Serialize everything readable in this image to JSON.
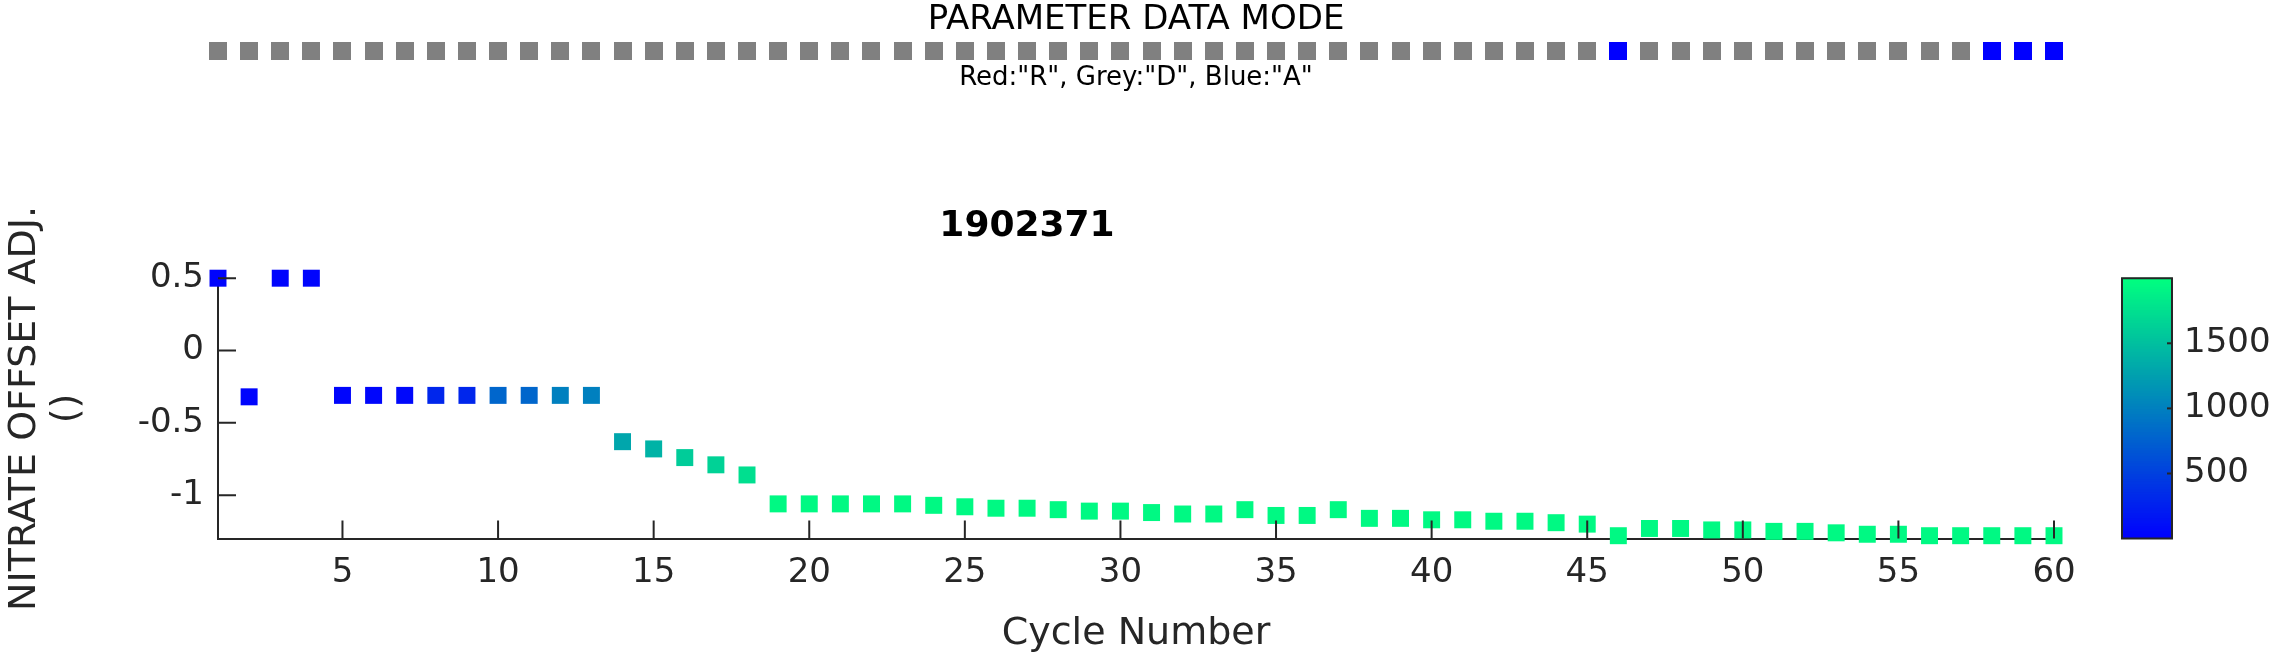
{
  "chart_data": [
    {
      "type": "other",
      "title": "PARAMETER DATA MODE",
      "annotations": [
        "Red:\"R\", Grey:\"D\", Blue:\"A\""
      ],
      "categories": [
        null,
        null,
        null,
        null,
        null,
        null,
        null,
        null,
        null,
        null,
        null,
        null,
        null,
        null,
        null,
        null,
        null,
        null,
        null,
        null,
        null,
        null,
        null,
        null,
        null,
        null,
        null,
        null,
        null,
        null,
        null,
        null,
        null,
        null,
        null,
        null,
        null,
        null,
        null,
        null,
        null,
        null,
        null,
        null,
        null,
        null,
        null,
        null,
        null,
        null,
        null,
        null,
        null,
        null,
        null,
        null,
        null,
        null,
        null,
        null
      ],
      "colors": [
        "#808080",
        "#808080",
        "#808080",
        "#808080",
        "#808080",
        "#808080",
        "#808080",
        "#808080",
        "#808080",
        "#808080",
        "#808080",
        "#808080",
        "#808080",
        "#808080",
        "#808080",
        "#808080",
        "#808080",
        "#808080",
        "#808080",
        "#808080",
        "#808080",
        "#808080",
        "#808080",
        "#808080",
        "#808080",
        "#808080",
        "#808080",
        "#808080",
        "#808080",
        "#808080",
        "#808080",
        "#808080",
        "#808080",
        "#808080",
        "#808080",
        "#808080",
        "#808080",
        "#808080",
        "#808080",
        "#808080",
        "#808080",
        "#808080",
        "#808080",
        "#808080",
        "#808080",
        "#0000ff",
        "#808080",
        "#808080",
        "#808080",
        "#808080",
        "#808080",
        "#808080",
        "#808080",
        "#808080",
        "#808080",
        "#808080",
        "#808080",
        "#0000ff",
        "#0000ff",
        "#0000ff"
      ]
    },
    {
      "type": "scatter",
      "title": "1902371",
      "xlabel": "Cycle Number",
      "ylabel": "NITRATE OFFSET ADJ.\n()",
      "x": [
        1,
        2,
        3,
        4,
        5,
        6,
        7,
        8,
        9,
        10,
        11,
        12,
        13,
        14,
        15,
        16,
        17,
        18,
        19,
        20,
        21,
        22,
        23,
        24,
        25,
        26,
        27,
        28,
        29,
        30,
        31,
        32,
        33,
        34,
        35,
        36,
        37,
        38,
        39,
        40,
        41,
        42,
        43,
        44,
        45,
        46,
        47,
        48,
        49,
        50,
        51,
        52,
        53,
        54,
        55,
        56,
        57,
        58,
        59,
        60
      ],
      "values": [
        0.5,
        -0.32,
        0.5,
        0.5,
        -0.31,
        -0.31,
        -0.31,
        -0.31,
        -0.31,
        -0.31,
        -0.31,
        -0.31,
        -0.31,
        -0.63,
        -0.68,
        -0.74,
        -0.79,
        -0.86,
        -1.06,
        -1.06,
        -1.06,
        -1.06,
        -1.06,
        -1.07,
        -1.08,
        -1.09,
        -1.09,
        -1.1,
        -1.11,
        -1.11,
        -1.12,
        -1.13,
        -1.13,
        -1.1,
        -1.14,
        -1.14,
        -1.1,
        -1.16,
        -1.16,
        -1.17,
        -1.17,
        -1.18,
        -1.18,
        -1.19,
        -1.2,
        -1.28,
        -1.23,
        -1.23,
        -1.24,
        -1.24,
        -1.25,
        -1.25,
        -1.26,
        -1.27,
        -1.27,
        -1.28,
        -1.28,
        -1.28,
        -1.28,
        -1.28
      ],
      "cvalues": [
        30,
        30,
        30,
        30,
        40,
        50,
        60,
        300,
        300,
        800,
        800,
        1000,
        1000,
        1300,
        1400,
        1600,
        1650,
        1750,
        1950,
        1950,
        1950,
        1950,
        1950,
        1950,
        1950,
        1950,
        1950,
        1950,
        1950,
        1950,
        1950,
        1950,
        1950,
        1950,
        1950,
        1950,
        1950,
        1950,
        1950,
        1950,
        1950,
        1950,
        1950,
        1950,
        1950,
        1950,
        1950,
        1950,
        1950,
        1950,
        1950,
        1950,
        1950,
        1950,
        1950,
        1950,
        1950,
        1950,
        1950,
        1950
      ],
      "clim": [
        0,
        2000
      ],
      "cticks": [
        500,
        1000,
        1500
      ],
      "xlim": [
        1,
        60
      ],
      "ylim": [
        -1.3,
        0.5
      ],
      "xticks": [
        5,
        10,
        15,
        20,
        25,
        30,
        35,
        40,
        45,
        50,
        55,
        60
      ],
      "yticks": [
        -1,
        -0.5,
        0,
        0.5
      ],
      "grid": false,
      "legend": false,
      "marker": "square"
    }
  ]
}
